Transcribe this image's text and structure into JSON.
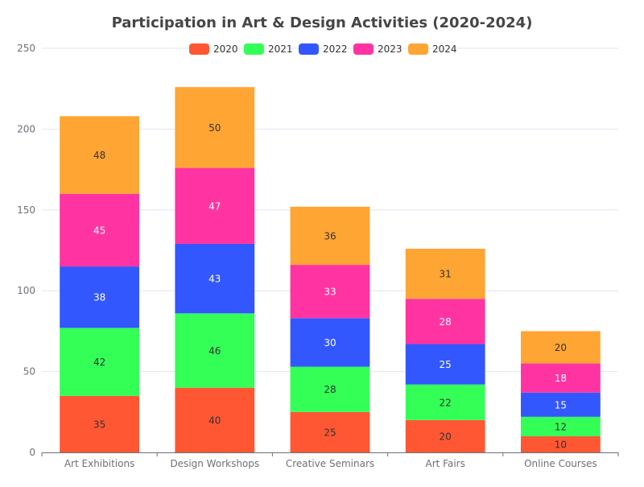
{
  "chart_data": {
    "type": "bar",
    "stacked": true,
    "title": "Participation in Art & Design Activities (2020-2024)",
    "categories": [
      "Art Exhibitions",
      "Design Workshops",
      "Creative Seminars",
      "Art Fairs",
      "Online Courses"
    ],
    "series": [
      {
        "name": "2020",
        "color": "#ff5733",
        "label_color": "#333333",
        "values": [
          35,
          40,
          25,
          20,
          10
        ]
      },
      {
        "name": "2021",
        "color": "#33ff57",
        "label_color": "#333333",
        "values": [
          42,
          46,
          28,
          22,
          12
        ]
      },
      {
        "name": "2022",
        "color": "#3357ff",
        "label_color": "#ffffff",
        "values": [
          38,
          43,
          30,
          25,
          15
        ]
      },
      {
        "name": "2023",
        "color": "#ff33a1",
        "label_color": "#ffffff",
        "values": [
          45,
          47,
          33,
          28,
          18
        ]
      },
      {
        "name": "2024",
        "color": "#ffa533",
        "label_color": "#333333",
        "values": [
          48,
          50,
          36,
          31,
          20
        ]
      }
    ],
    "ylim": [
      0,
      250
    ],
    "yticks": [
      0,
      50,
      100,
      150,
      200,
      250
    ],
    "grid": true,
    "legend_position": "top-center",
    "data_labels": true
  }
}
